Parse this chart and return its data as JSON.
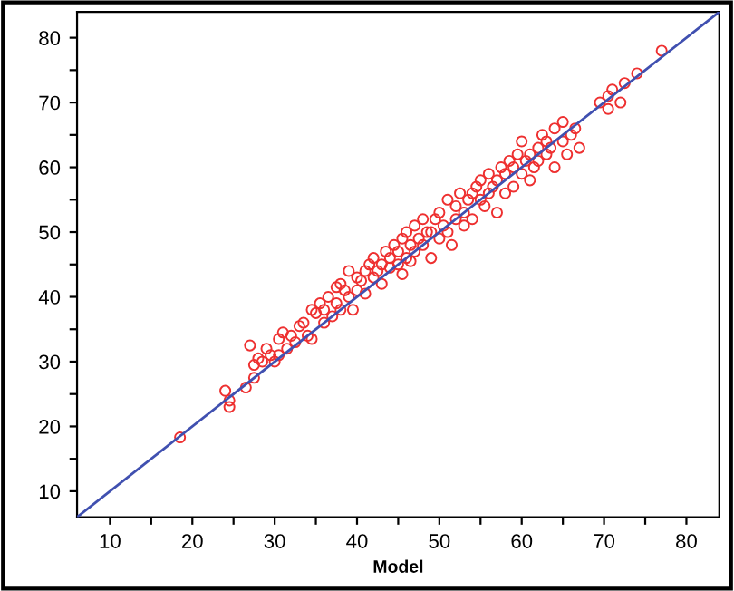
{
  "chart_data": {
    "type": "scatter",
    "xlabel": "Model",
    "xlim": [
      6,
      84
    ],
    "ylim": [
      6,
      84
    ],
    "xticks": [
      10,
      {
        "value": 15,
        "label": null
      },
      20,
      {
        "value": 25,
        "label": null
      },
      30,
      {
        "value": 35,
        "label": null
      },
      40,
      {
        "value": 45,
        "label": null
      },
      50,
      {
        "value": 55,
        "label": null
      },
      60,
      {
        "value": 65,
        "label": null
      },
      70,
      {
        "value": 75,
        "label": null
      },
      80
    ],
    "yticks": [
      10,
      {
        "value": 15,
        "label": null
      },
      20,
      {
        "value": 25,
        "label": null
      },
      30,
      {
        "value": 35,
        "label": null
      },
      40,
      {
        "value": 45,
        "label": null
      },
      50,
      {
        "value": 55,
        "label": null
      },
      60,
      {
        "value": 65,
        "label": null
      },
      70,
      {
        "value": 75,
        "label": null
      },
      80
    ],
    "grid": false,
    "series": [
      {
        "marker": "circle",
        "color": "#ee3030",
        "x": [
          18.5,
          24,
          24.5,
          24.5,
          26.5,
          27,
          27.5,
          27.5,
          28,
          28.5,
          29,
          29.5,
          30,
          30.5,
          30.5,
          31,
          31.5,
          32,
          32.5,
          33,
          33.5,
          34,
          34.5,
          34.5,
          35,
          35.5,
          36,
          36,
          36.5,
          37,
          37.5,
          37.5,
          38,
          38,
          38.5,
          39,
          39,
          39.5,
          40,
          40,
          40.5,
          41,
          41,
          41.5,
          42,
          42,
          42.5,
          43,
          43,
          43.5,
          44,
          44,
          44.5,
          45,
          45,
          45.5,
          45.5,
          46,
          46,
          46.5,
          46.5,
          47,
          47,
          47.5,
          48,
          48,
          48.5,
          49,
          49,
          49.5,
          50,
          50,
          50.5,
          51,
          51,
          51.5,
          52,
          52,
          52.5,
          53,
          53,
          53.5,
          54,
          54,
          54.5,
          55,
          55,
          55.5,
          56,
          56,
          56.5,
          57,
          57,
          57.5,
          58,
          58,
          58.5,
          59,
          59,
          59.5,
          60,
          60,
          60.5,
          61,
          61,
          61.5,
          62,
          62,
          62.5,
          63,
          63,
          63.5,
          64,
          64,
          65,
          65,
          65.5,
          66,
          66.5,
          67,
          69.5,
          70.5,
          70.5,
          71,
          72,
          72.5,
          74,
          77
        ],
        "values": [
          18.3,
          25.5,
          23,
          24,
          26,
          32.5,
          27.5,
          29.5,
          30.5,
          30,
          32,
          31,
          30,
          33.5,
          31,
          34.5,
          32,
          34,
          33,
          35.5,
          36,
          34,
          38,
          33.5,
          37.5,
          39,
          36,
          38,
          40,
          37,
          41.5,
          39,
          38,
          42,
          41,
          40,
          44,
          38,
          43,
          41,
          42.5,
          44,
          40.5,
          45,
          43,
          46,
          44,
          42,
          45,
          47,
          44.5,
          46,
          48,
          45,
          47,
          49,
          43.5,
          46,
          50,
          48,
          45.5,
          47,
          51,
          49,
          48,
          52,
          50,
          46,
          50,
          52,
          49,
          53,
          51,
          50,
          55,
          48,
          52,
          54,
          56,
          51,
          53,
          55,
          56,
          52,
          57,
          55,
          58,
          54,
          56,
          59,
          57,
          53,
          58,
          60,
          56,
          59,
          61,
          57,
          60,
          62,
          59,
          64,
          61,
          58,
          62,
          60,
          63,
          61,
          65,
          64,
          62,
          63,
          66,
          60,
          64,
          67,
          62,
          65,
          66,
          63,
          70,
          71,
          69,
          72,
          70,
          73,
          74.5,
          78
        ]
      },
      {
        "type": "line",
        "marker": "none",
        "color": "#4050b0",
        "x": [
          6,
          84
        ],
        "values": [
          6,
          84
        ]
      }
    ]
  }
}
